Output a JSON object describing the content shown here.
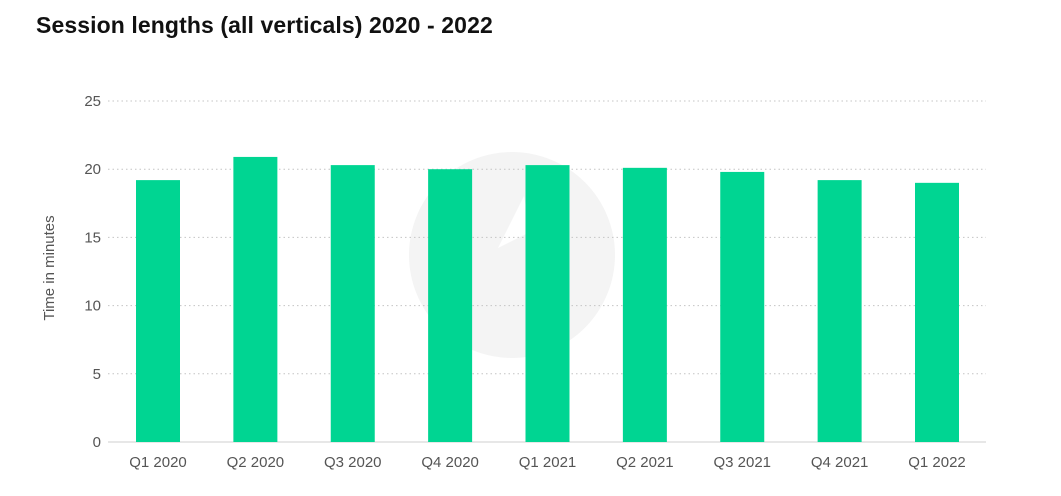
{
  "chart_data": {
    "type": "bar",
    "title": "Session lengths (all verticals) 2020 - 2022",
    "xlabel": "",
    "ylabel": "Time in minutes",
    "categories": [
      "Q1 2020",
      "Q2 2020",
      "Q3 2020",
      "Q4 2020",
      "Q1 2021",
      "Q2 2021",
      "Q3 2021",
      "Q4 2021",
      "Q1 2022"
    ],
    "values": [
      19.2,
      20.9,
      20.3,
      20.0,
      20.3,
      20.1,
      19.8,
      19.2,
      19.0
    ],
    "ylim": [
      0,
      25
    ],
    "yticks": [
      0,
      5,
      10,
      15,
      20,
      25
    ],
    "grid": true,
    "legend": "none",
    "bar_color": "#00d592"
  }
}
